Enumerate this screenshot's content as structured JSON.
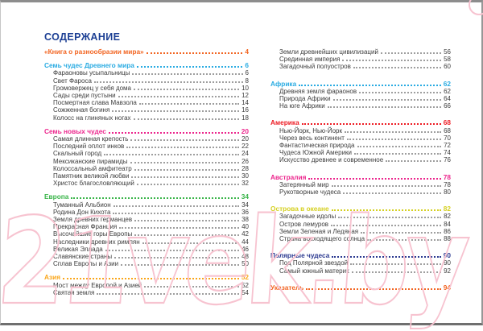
{
  "title": "СОДЕРЖАНИЕ",
  "watermark": "21vek.by",
  "colors": {
    "title_navy": "#1c3f94",
    "orange": "#f26522",
    "cyan": "#29abe2",
    "pink": "#ec268d",
    "green": "#3ab54a",
    "yellow_orange": "#faa61a",
    "red": "#ed1c24",
    "olive_yellow": "#d5d021",
    "navy": "#2b3990",
    "item_text": "#3d3d3d",
    "dot_gray": "#9e9e9e",
    "watermark_pink": "#f7c3d0"
  },
  "toc": {
    "left_column": [
      {
        "title": "«Книга о разнообразии мира»",
        "page": "4",
        "color": "#f26522",
        "items": []
      },
      {
        "title": "Семь чудес Древнего мира",
        "page": "6",
        "color": "#29abe2",
        "items": [
          {
            "label": "Фараоновы усыпальницы",
            "page": "6"
          },
          {
            "label": "Свет Фароса",
            "page": "8"
          },
          {
            "label": "Громовержец у себя дома",
            "page": "10"
          },
          {
            "label": "Сады среди пустыни",
            "page": "12"
          },
          {
            "label": "Посмертная слава Мавзола",
            "page": "14"
          },
          {
            "label": "Сожженная богиня",
            "page": "16"
          },
          {
            "label": "Колосс на глиняных ногах",
            "page": "18"
          }
        ]
      },
      {
        "title": "Семь новых чудес",
        "page": "20",
        "color": "#ec268d",
        "items": [
          {
            "label": "Самая длинная крепость",
            "page": "20"
          },
          {
            "label": "Последний оплот инков",
            "page": "22"
          },
          {
            "label": "Скальный город",
            "page": "24"
          },
          {
            "label": "Мексиканские пирамиды",
            "page": "26"
          },
          {
            "label": "Колоссальный амфитеатр",
            "page": "28"
          },
          {
            "label": "Памятник великой любви",
            "page": "30"
          },
          {
            "label": "Христос благословляющий",
            "page": "32"
          }
        ]
      },
      {
        "title": "Европа",
        "page": "34",
        "color": "#3ab54a",
        "items": [
          {
            "label": "Туманный Альбион",
            "page": "34"
          },
          {
            "label": "Родина Дон Кихота",
            "page": "36"
          },
          {
            "label": "Земля древних германцев",
            "page": "38"
          },
          {
            "label": "Прекрасная Франция",
            "page": "40"
          },
          {
            "label": "Высочайшие горы Европы",
            "page": "42"
          },
          {
            "label": "Наследники древних римлян",
            "page": "44"
          },
          {
            "label": "Великая Эллада",
            "page": "46"
          },
          {
            "label": "Славянские страны",
            "page": "48"
          },
          {
            "label": "Сплав Европы и Азии",
            "page": "50"
          }
        ]
      },
      {
        "title": "Азия",
        "page": "52",
        "color": "#faa61a",
        "items": [
          {
            "label": "Мост между Европой и Азией",
            "page": "52"
          },
          {
            "label": "Святая земля",
            "page": "54"
          }
        ]
      }
    ],
    "right_column": [
      {
        "title": "",
        "page": "",
        "color": "",
        "items": [
          {
            "label": "Земли древнейших цивилизаций",
            "page": "56"
          },
          {
            "label": "Срединная империя",
            "page": "58"
          },
          {
            "label": "Загадочный полуостров",
            "page": "60"
          }
        ]
      },
      {
        "title": "Африка",
        "page": "62",
        "color": "#29abe2",
        "items": [
          {
            "label": "Древняя земля фараонов",
            "page": "62"
          },
          {
            "label": "Природа Африки",
            "page": "64"
          },
          {
            "label": "На юге Африки",
            "page": "66"
          }
        ]
      },
      {
        "title": "Америка",
        "page": "68",
        "color": "#ed1c24",
        "items": [
          {
            "label": "Нью-Йорк, Нью-Йорк",
            "page": "68"
          },
          {
            "label": "Через весь континент",
            "page": "70"
          },
          {
            "label": "Фантастическая природа",
            "page": "72"
          },
          {
            "label": "Чудеса Южной Америки",
            "page": "74"
          },
          {
            "label": "Искусство древнее и современное",
            "page": "76"
          }
        ]
      },
      {
        "title": "Австралия",
        "page": "78",
        "color": "#ec268d",
        "items": [
          {
            "label": "Затерянный мир",
            "page": "78"
          },
          {
            "label": "Рукотворные чудеса",
            "page": "80"
          }
        ]
      },
      {
        "title": "Острова в океане",
        "page": "82",
        "color": "#d5d021",
        "items": [
          {
            "label": "Загадочные идолы",
            "page": "82"
          },
          {
            "label": "Остров лемуров",
            "page": "84"
          },
          {
            "label": "Земли Зеленая и Ледяная",
            "page": "86"
          },
          {
            "label": "Страна восходящего солнца",
            "page": "88"
          }
        ]
      },
      {
        "title": "Полярные чудеса",
        "page": "90",
        "color": "#2b3990",
        "items": [
          {
            "label": "Под Полярной звездой",
            "page": "90"
          },
          {
            "label": "Самый южный материк",
            "page": "92"
          }
        ]
      },
      {
        "title": "Указатель",
        "page": "94",
        "color": "#f26522",
        "items": []
      }
    ]
  }
}
